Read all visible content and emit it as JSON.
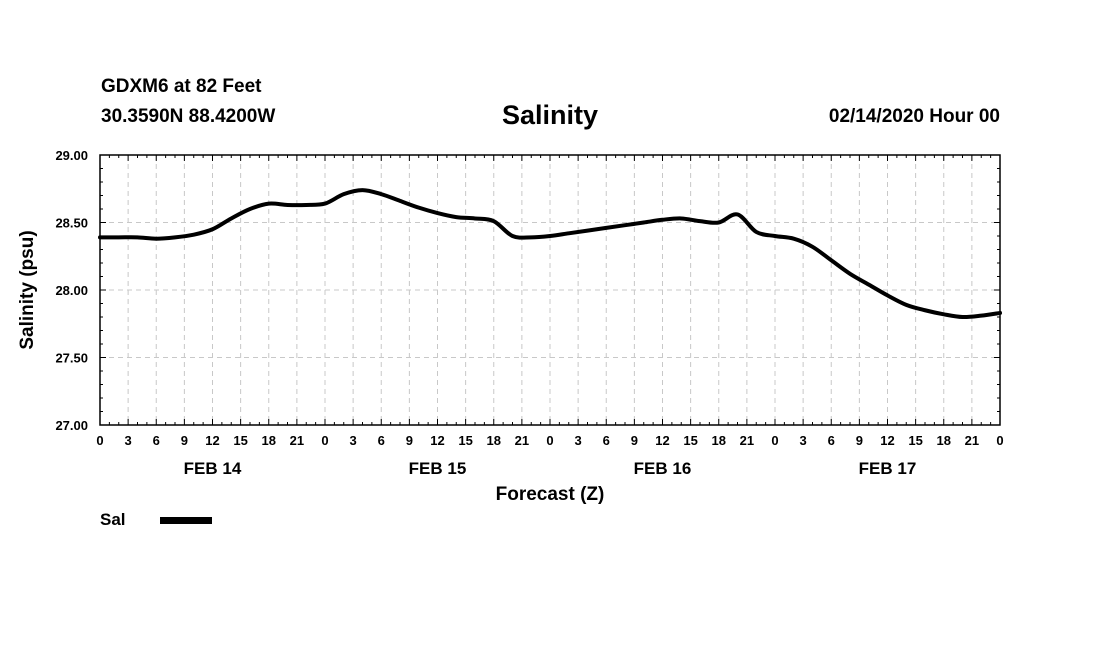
{
  "header": {
    "station": "GDXM6 at 82 Feet",
    "coords": "30.3590N 88.4200W",
    "title": "Salinity",
    "datestamp": "02/14/2020 Hour 00"
  },
  "chart_data": {
    "type": "line",
    "title": "Salinity",
    "xlabel": "Forecast (Z)",
    "ylabel": "Salinity (psu)",
    "xlim": [
      0,
      96
    ],
    "ylim": [
      27.0,
      29.0
    ],
    "yticks": [
      "27.00",
      "27.50",
      "28.00",
      "28.50",
      "29.00"
    ],
    "ytick_values": [
      27.0,
      27.5,
      28.0,
      28.5,
      29.0
    ],
    "xtick_hours": [
      0,
      3,
      6,
      9,
      12,
      15,
      18,
      21,
      24,
      27,
      30,
      33,
      36,
      39,
      42,
      45,
      48,
      51,
      54,
      57,
      60,
      63,
      66,
      69,
      72,
      75,
      78,
      81,
      84,
      87,
      90,
      93,
      96
    ],
    "xtick_labels": [
      "0",
      "3",
      "6",
      "9",
      "12",
      "15",
      "18",
      "21",
      "0",
      "3",
      "6",
      "9",
      "12",
      "15",
      "18",
      "21",
      "0",
      "3",
      "6",
      "9",
      "12",
      "15",
      "18",
      "21",
      "0",
      "3",
      "6",
      "9",
      "12",
      "15",
      "18",
      "21",
      "0"
    ],
    "day_labels": [
      {
        "label": "FEB 14",
        "hour": 12
      },
      {
        "label": "FEB 15",
        "hour": 36
      },
      {
        "label": "FEB 16",
        "hour": 60
      },
      {
        "label": "FEB 17",
        "hour": 84
      }
    ],
    "grid": true,
    "legend": "bottom-left",
    "series": [
      {
        "name": "Sal",
        "color": "#000000",
        "x": [
          0,
          2,
          4,
          6,
          8,
          10,
          12,
          14,
          16,
          18,
          20,
          22,
          24,
          26,
          28,
          30,
          32,
          34,
          36,
          38,
          40,
          42,
          44,
          46,
          48,
          50,
          52,
          54,
          56,
          58,
          60,
          62,
          64,
          66,
          68,
          70,
          72,
          74,
          76,
          78,
          80,
          82,
          84,
          86,
          88,
          90,
          92,
          94,
          96
        ],
        "values": [
          28.39,
          28.39,
          28.39,
          28.38,
          28.39,
          28.41,
          28.45,
          28.53,
          28.6,
          28.64,
          28.63,
          28.63,
          28.64,
          28.71,
          28.74,
          28.71,
          28.66,
          28.61,
          28.57,
          28.54,
          28.53,
          28.51,
          28.4,
          28.39,
          28.4,
          28.42,
          28.44,
          28.46,
          28.48,
          28.5,
          28.52,
          28.53,
          28.51,
          28.5,
          28.56,
          28.43,
          28.4,
          28.38,
          28.32,
          28.22,
          28.12,
          28.04,
          27.96,
          27.89,
          27.85,
          27.82,
          27.8,
          27.81,
          27.83
        ]
      }
    ]
  }
}
